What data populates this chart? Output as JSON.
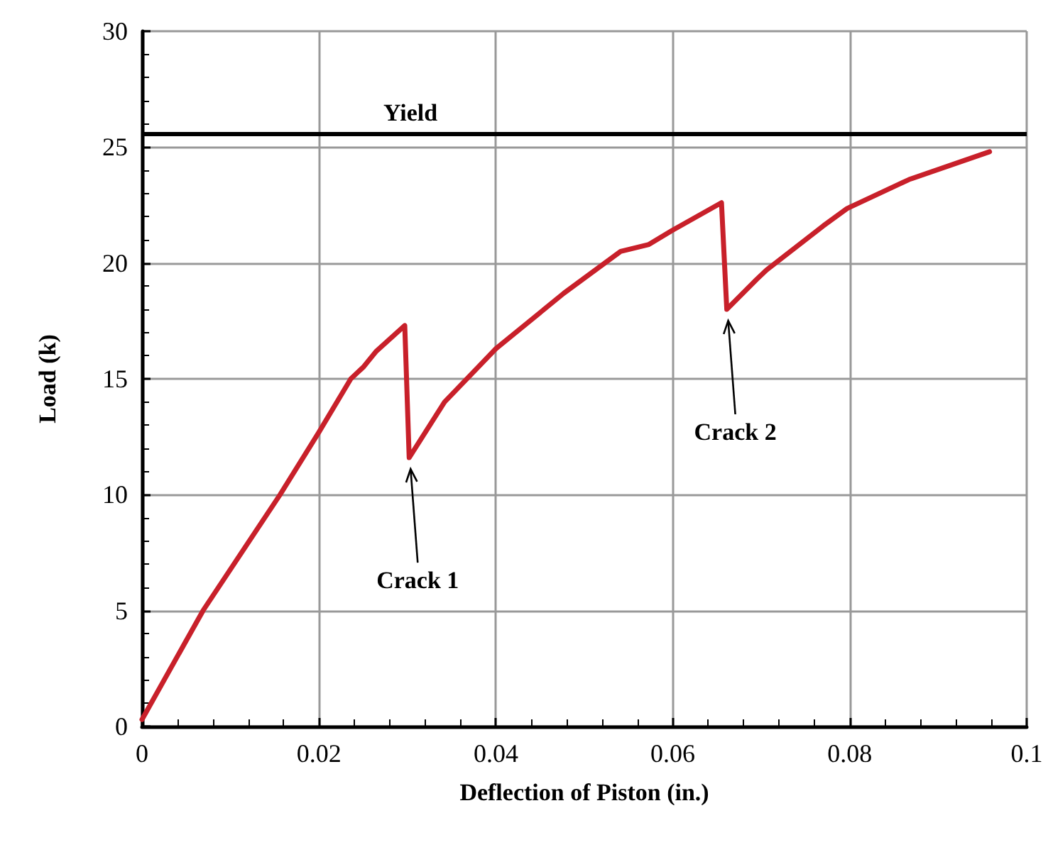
{
  "chart_data": {
    "type": "line",
    "xlabel": "Deflection of Piston (in.)",
    "ylabel": "Load (k)",
    "xlim": [
      0,
      0.1
    ],
    "xticks": [
      0,
      0.02,
      0.04,
      0.06,
      0.08,
      0.1
    ],
    "ylim": [
      0,
      30
    ],
    "yticks": [
      0,
      5,
      10,
      15,
      20,
      25,
      30
    ],
    "grid": true,
    "marker": "none",
    "line_style": "solid",
    "series": [
      {
        "color": "#c8202a",
        "x": [
          0,
          0.0069,
          0.0156,
          0.02,
          0.0236,
          0.025,
          0.0265,
          0.0297,
          0.0302,
          0.0342,
          0.04,
          0.0477,
          0.0541,
          0.0573,
          0.0599,
          0.0655,
          0.0661,
          0.0695,
          0.0706,
          0.077,
          0.0797,
          0.0867,
          0.0958
        ],
        "values": [
          0.3,
          5,
          10,
          12.7,
          15,
          15.5,
          16.2,
          17.3,
          11.6,
          14.0,
          16.3,
          18.7,
          20.5,
          20.8,
          21.4,
          22.6,
          18.0,
          19.3,
          19.7,
          21.6,
          22.35,
          23.6,
          24.8
        ]
      }
    ],
    "ref_lines": [
      {
        "axis": "y",
        "value": 25.6,
        "label": "Yield",
        "color": "#000000"
      }
    ],
    "annotations": [
      {
        "text": "Crack 1",
        "x": 0.0302,
        "y": 11.6
      },
      {
        "text": "Crack 2",
        "x": 0.0661,
        "y": 18.0
      }
    ]
  }
}
